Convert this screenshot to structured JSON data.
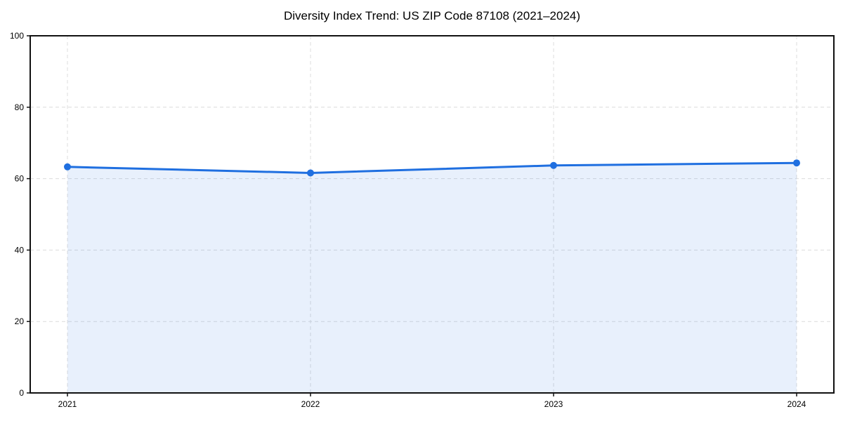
{
  "chart_data": {
    "type": "area",
    "title": "Diversity Index Trend: US ZIP Code 87108 (2021–2024)",
    "x_labels": [
      "2021",
      "2022",
      "2023",
      "2024"
    ],
    "series": [
      {
        "name": "Diversity Index",
        "values": [
          63.3,
          61.6,
          63.7,
          64.4
        ]
      }
    ],
    "xlabel": "",
    "ylabel": "",
    "ylim": [
      0,
      100
    ],
    "yticks": [
      0,
      20,
      40,
      60,
      80,
      100
    ],
    "grid": true,
    "grid_style": "dashed",
    "legend_position": "none",
    "colors": {
      "line": "#1f6fe0",
      "marker": "#1f6fe0",
      "fill": "rgba(31,111,224,0.10)",
      "grid": "#dcdcdc",
      "spine": "#111111",
      "background": "#ffffff"
    }
  }
}
